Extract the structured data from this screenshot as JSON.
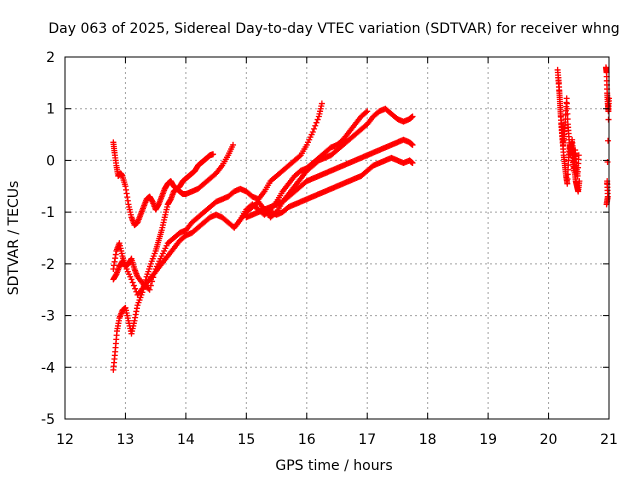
{
  "chart_data": {
    "type": "scatter",
    "title": "Day 063 of 2025, Sidereal Day-to-day VTEC variation (SDTVAR) for receiver whng",
    "xlabel": "GPS time / hours",
    "ylabel": "SDTVAR / TECUs",
    "xlim": [
      12,
      21
    ],
    "ylim": [
      -5,
      2
    ],
    "xticks": [
      "12",
      "13",
      "14",
      "15",
      "16",
      "17",
      "18",
      "19",
      "20",
      "21"
    ],
    "yticks": [
      "-5",
      "-4",
      "-3",
      "-2",
      "-1",
      "0",
      "1",
      "2"
    ],
    "grid": true,
    "marker": "+",
    "color": "#ff0000",
    "series": [
      {
        "x": [
          12.8,
          12.83,
          12.86,
          12.9,
          12.95,
          13.0,
          13.05,
          13.1,
          13.15,
          13.2,
          13.28,
          13.35,
          13.42,
          13.5,
          13.55,
          13.6,
          13.65,
          13.7,
          13.75,
          13.8,
          13.85,
          13.9,
          13.95,
          14.0,
          14.05,
          14.1,
          14.15,
          14.2,
          14.25,
          14.3,
          14.35,
          14.4,
          14.45
        ],
        "y": [
          -4.05,
          -3.7,
          -3.3,
          -3.05,
          -2.9,
          -2.85,
          -3.1,
          -3.35,
          -3.1,
          -2.8,
          -2.55,
          -2.25,
          -2.0,
          -1.75,
          -1.55,
          -1.35,
          -1.1,
          -0.85,
          -0.75,
          -0.6,
          -0.55,
          -0.5,
          -0.4,
          -0.35,
          -0.3,
          -0.25,
          -0.2,
          -0.1,
          -0.05,
          0.0,
          0.05,
          0.1,
          0.12
        ]
      },
      {
        "x": [
          12.8,
          12.82,
          12.85,
          12.88,
          12.92,
          12.95,
          13.0,
          13.05,
          13.1,
          13.15,
          13.2,
          13.25,
          13.3,
          13.35,
          13.4,
          13.45,
          13.5,
          13.55,
          13.6,
          13.65,
          13.7,
          13.75,
          13.8,
          13.85,
          13.9,
          13.95,
          14.0,
          14.1,
          14.2,
          14.3,
          14.4,
          14.5,
          14.6,
          14.7,
          14.78
        ],
        "y": [
          0.35,
          0.15,
          -0.1,
          -0.3,
          -0.25,
          -0.3,
          -0.5,
          -0.85,
          -1.1,
          -1.25,
          -1.2,
          -1.05,
          -0.9,
          -0.75,
          -0.7,
          -0.8,
          -0.95,
          -0.85,
          -0.7,
          -0.55,
          -0.45,
          -0.4,
          -0.5,
          -0.55,
          -0.6,
          -0.65,
          -0.65,
          -0.6,
          -0.55,
          -0.45,
          -0.35,
          -0.25,
          -0.1,
          0.1,
          0.3
        ]
      },
      {
        "x": [
          12.8,
          12.85,
          12.9,
          12.95,
          13.0,
          13.05,
          13.1,
          13.15,
          13.2,
          13.3,
          13.4,
          13.5,
          13.6,
          13.7,
          13.8,
          13.9,
          14.0,
          14.1,
          14.2,
          14.3,
          14.4,
          14.5,
          14.6,
          14.7,
          14.8,
          14.9,
          15.0,
          15.1,
          15.2,
          15.3,
          15.4,
          15.5,
          15.6,
          15.7,
          15.8,
          15.9,
          16.0,
          16.1,
          16.2,
          16.25
        ],
        "y": [
          -2.1,
          -1.75,
          -1.6,
          -1.85,
          -2.05,
          -2.0,
          -1.9,
          -2.1,
          -2.25,
          -2.4,
          -2.5,
          -2.1,
          -1.85,
          -1.6,
          -1.5,
          -1.4,
          -1.35,
          -1.2,
          -1.1,
          -1.0,
          -0.9,
          -0.8,
          -0.75,
          -0.7,
          -0.6,
          -0.55,
          -0.6,
          -0.7,
          -0.75,
          -0.6,
          -0.4,
          -0.3,
          -0.2,
          -0.1,
          0.0,
          0.1,
          0.3,
          0.55,
          0.85,
          1.1
        ]
      },
      {
        "x": [
          12.8,
          12.85,
          12.9,
          12.95,
          13.0,
          13.1,
          13.2,
          13.3,
          13.4,
          13.5,
          13.6,
          13.7,
          13.8,
          13.9,
          14.0,
          14.1,
          14.2,
          14.3,
          14.4,
          14.5,
          14.6,
          14.7,
          14.8,
          14.9,
          15.0,
          15.1,
          15.2,
          15.3,
          15.4,
          15.5,
          15.6,
          15.7,
          15.8,
          15.9,
          16.0,
          16.1,
          16.2,
          16.3,
          16.4,
          16.5,
          16.6,
          16.7,
          16.8,
          16.9,
          17.0
        ],
        "y": [
          -2.3,
          -2.2,
          -2.05,
          -1.95,
          -2.05,
          -2.3,
          -2.6,
          -2.45,
          -2.3,
          -2.15,
          -2.0,
          -1.85,
          -1.7,
          -1.55,
          -1.45,
          -1.4,
          -1.3,
          -1.2,
          -1.1,
          -1.05,
          -1.1,
          -1.2,
          -1.3,
          -1.15,
          -0.95,
          -0.85,
          -0.95,
          -1.05,
          -0.95,
          -0.8,
          -0.6,
          -0.45,
          -0.3,
          -0.2,
          -0.15,
          -0.05,
          0.05,
          0.15,
          0.25,
          0.3,
          0.4,
          0.55,
          0.7,
          0.85,
          0.95
        ]
      },
      {
        "x": [
          14.8,
          14.9,
          15.0,
          15.1,
          15.2,
          15.3,
          15.4,
          15.5,
          15.6,
          15.7,
          15.8,
          15.9,
          16.0,
          16.1,
          16.2,
          16.3,
          16.4,
          16.5,
          16.6,
          16.7,
          16.8,
          16.9,
          17.0,
          17.1,
          17.2,
          17.3,
          17.4,
          17.5,
          17.6,
          17.7,
          17.75
        ],
        "y": [
          -1.3,
          -1.15,
          -1.0,
          -0.9,
          -0.8,
          -0.95,
          -1.1,
          -1.0,
          -0.8,
          -0.65,
          -0.5,
          -0.35,
          -0.2,
          -0.1,
          0.0,
          0.05,
          0.1,
          0.2,
          0.3,
          0.4,
          0.5,
          0.6,
          0.7,
          0.85,
          0.95,
          1.0,
          0.9,
          0.8,
          0.75,
          0.8,
          0.85
        ]
      },
      {
        "x": [
          15.0,
          15.1,
          15.2,
          15.3,
          15.4,
          15.5,
          15.6,
          15.7,
          15.8,
          15.9,
          16.0,
          16.1,
          16.2,
          16.3,
          16.4,
          16.5,
          16.6,
          16.7,
          16.8,
          16.9,
          17.0,
          17.1,
          17.2,
          17.3,
          17.4,
          17.5,
          17.6,
          17.7,
          17.75
        ],
        "y": [
          -1.1,
          -1.05,
          -1.0,
          -0.95,
          -0.9,
          -0.85,
          -0.8,
          -0.7,
          -0.6,
          -0.5,
          -0.4,
          -0.35,
          -0.3,
          -0.25,
          -0.2,
          -0.15,
          -0.1,
          -0.05,
          0.0,
          0.05,
          0.1,
          0.15,
          0.2,
          0.25,
          0.3,
          0.35,
          0.4,
          0.35,
          0.3
        ]
      },
      {
        "x": [
          15.4,
          15.5,
          15.6,
          15.7,
          15.8,
          15.9,
          16.0,
          16.1,
          16.2,
          16.3,
          16.4,
          16.5,
          16.6,
          16.7,
          16.8,
          16.9,
          17.0,
          17.1,
          17.2,
          17.3,
          17.4,
          17.5,
          17.6,
          17.7,
          17.75
        ],
        "y": [
          -1.0,
          -1.05,
          -1.0,
          -0.9,
          -0.85,
          -0.8,
          -0.75,
          -0.7,
          -0.65,
          -0.6,
          -0.55,
          -0.5,
          -0.45,
          -0.4,
          -0.35,
          -0.3,
          -0.2,
          -0.1,
          -0.05,
          0.0,
          0.05,
          0.0,
          -0.05,
          0.0,
          -0.05
        ]
      },
      {
        "x": [
          20.15,
          20.17,
          20.19,
          20.21,
          20.23,
          20.25,
          20.27,
          20.29,
          20.31,
          20.33,
          20.35,
          20.37,
          20.39,
          20.41,
          20.43,
          20.45,
          20.47,
          20.49,
          20.51
        ],
        "y": [
          1.75,
          1.5,
          1.1,
          0.7,
          0.4,
          0.1,
          -0.1,
          -0.3,
          -0.45,
          0.0,
          0.3,
          0.2,
          0.4,
          0.1,
          -0.2,
          -0.4,
          -0.5,
          -0.6,
          -0.4
        ]
      },
      {
        "x": [
          20.16,
          20.18,
          20.2,
          20.22,
          20.24,
          20.26,
          20.28,
          20.3,
          20.32,
          20.34,
          20.36,
          20.38,
          20.4,
          20.42,
          20.44,
          20.46,
          20.48,
          20.5
        ],
        "y": [
          1.6,
          1.3,
          0.9,
          0.6,
          0.3,
          0.5,
          0.8,
          1.2,
          0.7,
          0.4,
          0.1,
          0.3,
          0.0,
          -0.2,
          0.2,
          -0.1,
          -0.3,
          0.1
        ]
      },
      {
        "x": [
          20.95,
          20.96,
          20.97,
          20.98,
          20.99,
          21.0,
          20.96,
          20.98,
          20.97
        ],
        "y": [
          1.8,
          1.7,
          1.3,
          1.1,
          0.95,
          1.2,
          -0.85,
          -0.7,
          -0.4
        ]
      }
    ]
  }
}
